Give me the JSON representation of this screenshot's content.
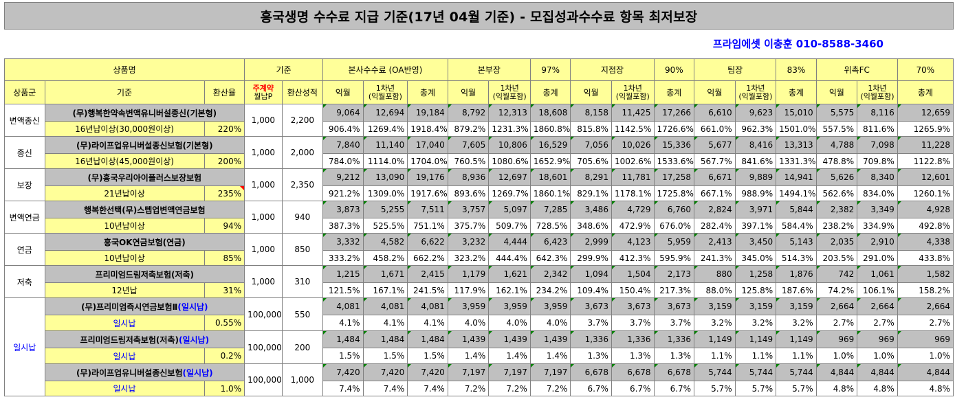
{
  "title": "흥국생명 수수료 지급 기준(17년 04월 기준) - 모집성과수수료 항목 최저보장",
  "contact": "프라임에셋 이충훈 010-8588-3460",
  "header": {
    "product": "상품명",
    "basis": "기준",
    "hq": "본사수수료 (OA반영)",
    "division": "본부장",
    "division_rate": "97%",
    "branch": "지점장",
    "branch_rate": "90%",
    "team": "팀장",
    "team_rate": "83%",
    "fc": "위촉FC",
    "fc_rate": "70%"
  },
  "subheader": {
    "group": "상품군",
    "criteria": "기준",
    "conv_rate": "환산율",
    "main_contract": "주계약",
    "monthly_p": "월납P",
    "conv_perf": "환산성적",
    "m1": "익월",
    "y1_line1": "1차년",
    "y1_line2": "(익월포함)",
    "total": "총계"
  },
  "rows": [
    {
      "group": "변액종신",
      "name": "(무)행복한약속변액유니버설종신(기본형)",
      "cond": "16년납이상(30,000원이상)",
      "rate": "220%",
      "monthly": "1,000",
      "perf": "2,200",
      "nums": [
        "9,064",
        "12,694",
        "19,184",
        "8,792",
        "12,313",
        "18,608",
        "8,158",
        "11,425",
        "17,266",
        "6,610",
        "9,623",
        "15,010",
        "5,575",
        "8,116",
        "12,659"
      ],
      "pcts": [
        "906.4%",
        "1269.4%",
        "1918.4%",
        "879.2%",
        "1231.3%",
        "1860.8%",
        "815.8%",
        "1142.5%",
        "1726.6%",
        "661.0%",
        "962.3%",
        "1501.0%",
        "557.5%",
        "811.6%",
        "1265.9%"
      ]
    },
    {
      "group": "종신",
      "name": "(무)라이프업유니버설종신보험(기본형)",
      "cond": "16년납이상(45,000원이상)",
      "rate": "200%",
      "monthly": "1,000",
      "perf": "2,000",
      "nums": [
        "7,840",
        "11,140",
        "17,040",
        "7,605",
        "10,806",
        "16,529",
        "7,056",
        "10,026",
        "15,336",
        "5,677",
        "8,416",
        "13,313",
        "4,788",
        "7,098",
        "11,228"
      ],
      "pcts": [
        "784.0%",
        "1114.0%",
        "1704.0%",
        "760.5%",
        "1080.6%",
        "1652.9%",
        "705.6%",
        "1002.6%",
        "1533.6%",
        "567.7%",
        "841.6%",
        "1331.3%",
        "478.8%",
        "709.8%",
        "1122.8%"
      ]
    },
    {
      "group": "보장",
      "name": "(무)흥국우리아이플러스보장보험",
      "cond": "21년납이상",
      "rate": "235%",
      "monthly": "1,000",
      "perf": "2,350",
      "nums": [
        "9,212",
        "13,090",
        "19,176",
        "8,936",
        "12,697",
        "18,601",
        "8,291",
        "11,781",
        "17,258",
        "6,671",
        "9,889",
        "14,941",
        "5,626",
        "8,340",
        "12,601"
      ],
      "pcts": [
        "921.2%",
        "1309.0%",
        "1917.6%",
        "893.6%",
        "1269.7%",
        "1860.1%",
        "829.1%",
        "1178.1%",
        "1725.8%",
        "667.1%",
        "988.9%",
        "1494.1%",
        "562.6%",
        "834.0%",
        "1260.1%"
      ]
    },
    {
      "group": "변액연금",
      "name": "행복한선택(무)스텝업변액연금보험",
      "cond": "10년납이상",
      "rate": "94%",
      "monthly": "1,000",
      "perf": "940",
      "nums": [
        "3,873",
        "5,255",
        "7,511",
        "3,757",
        "5,097",
        "7,285",
        "3,486",
        "4,729",
        "6,760",
        "2,824",
        "3,971",
        "5,844",
        "2,382",
        "3,349",
        "4,928"
      ],
      "pcts": [
        "387.3%",
        "525.5%",
        "751.1%",
        "375.7%",
        "509.7%",
        "728.5%",
        "348.6%",
        "472.9%",
        "676.0%",
        "282.4%",
        "397.1%",
        "584.4%",
        "238.2%",
        "334.9%",
        "492.8%"
      ]
    },
    {
      "group": "연금",
      "name": "흥국OK연금보험(연금)",
      "cond": "10년납이상",
      "rate": "85%",
      "monthly": "1,000",
      "perf": "850",
      "nums": [
        "3,332",
        "4,582",
        "6,622",
        "3,232",
        "4,444",
        "6,423",
        "2,999",
        "4,123",
        "5,959",
        "2,413",
        "3,450",
        "5,143",
        "2,035",
        "2,910",
        "4,338"
      ],
      "pcts": [
        "333.2%",
        "458.2%",
        "662.2%",
        "323.2%",
        "444.4%",
        "642.3%",
        "299.9%",
        "412.3%",
        "595.9%",
        "241.3%",
        "345.0%",
        "514.3%",
        "203.5%",
        "291.0%",
        "433.8%"
      ]
    },
    {
      "group": "저축",
      "name": "프리미엄드림저축보험(저축)",
      "cond": "12년납",
      "rate": "31%",
      "monthly": "1,000",
      "perf": "310",
      "nums": [
        "1,215",
        "1,671",
        "2,415",
        "1,179",
        "1,621",
        "2,342",
        "1,094",
        "1,504",
        "2,173",
        "880",
        "1,258",
        "1,876",
        "742",
        "1,061",
        "1,582"
      ],
      "pcts": [
        "121.5%",
        "167.1%",
        "241.5%",
        "117.9%",
        "162.1%",
        "234.2%",
        "109.4%",
        "150.4%",
        "217.3%",
        "88.0%",
        "125.8%",
        "187.6%",
        "74.2%",
        "106.1%",
        "158.2%"
      ]
    },
    {
      "group": "일시납",
      "name": "(무)프리미엄즉시연금보험Ⅱ",
      "name_suffix": "(일시납)",
      "cond": "일시납",
      "rate": "0.55%",
      "monthly": "100,000",
      "perf": "550",
      "nums": [
        "4,081",
        "4,081",
        "4,081",
        "3,959",
        "3,959",
        "3,959",
        "3,673",
        "3,673",
        "3,673",
        "3,159",
        "3,159",
        "3,159",
        "2,664",
        "2,664",
        "2,664"
      ],
      "pcts": [
        "4.1%",
        "4.1%",
        "4.1%",
        "4.0%",
        "4.0%",
        "4.0%",
        "3.7%",
        "3.7%",
        "3.7%",
        "3.2%",
        "3.2%",
        "3.2%",
        "2.7%",
        "2.7%",
        "2.7%"
      ]
    },
    {
      "group": "일시납",
      "name": "프리미엄드림저축보험(저축)",
      "name_suffix": "(일시납)",
      "cond": "일시납",
      "rate": "0.2%",
      "monthly": "100,000",
      "perf": "200",
      "nums": [
        "1,484",
        "1,484",
        "1,484",
        "1,439",
        "1,439",
        "1,439",
        "1,336",
        "1,336",
        "1,336",
        "1,149",
        "1,149",
        "1,149",
        "969",
        "969",
        "969"
      ],
      "pcts": [
        "1.5%",
        "1.5%",
        "1.5%",
        "1.4%",
        "1.4%",
        "1.4%",
        "1.3%",
        "1.3%",
        "1.3%",
        "1.1%",
        "1.1%",
        "1.1%",
        "1.0%",
        "1.0%",
        "1.0%"
      ]
    },
    {
      "group": "일시납",
      "name": "(무)라이프업유니버설종신보험",
      "name_suffix": "(일시납)",
      "cond": "일시납",
      "rate": "1.0%",
      "monthly": "100,000",
      "perf": "1,000",
      "nums": [
        "7,420",
        "7,420",
        "7,420",
        "7,197",
        "7,197",
        "7,197",
        "6,678",
        "6,678",
        "6,678",
        "5,744",
        "5,744",
        "5,744",
        "4,844",
        "4,844",
        "4,844"
      ],
      "pcts": [
        "7.4%",
        "7.4%",
        "7.4%",
        "7.2%",
        "7.2%",
        "7.2%",
        "6.7%",
        "6.7%",
        "6.7%",
        "5.7%",
        "5.7%",
        "5.7%",
        "4.8%",
        "4.8%",
        "4.8%"
      ]
    }
  ]
}
